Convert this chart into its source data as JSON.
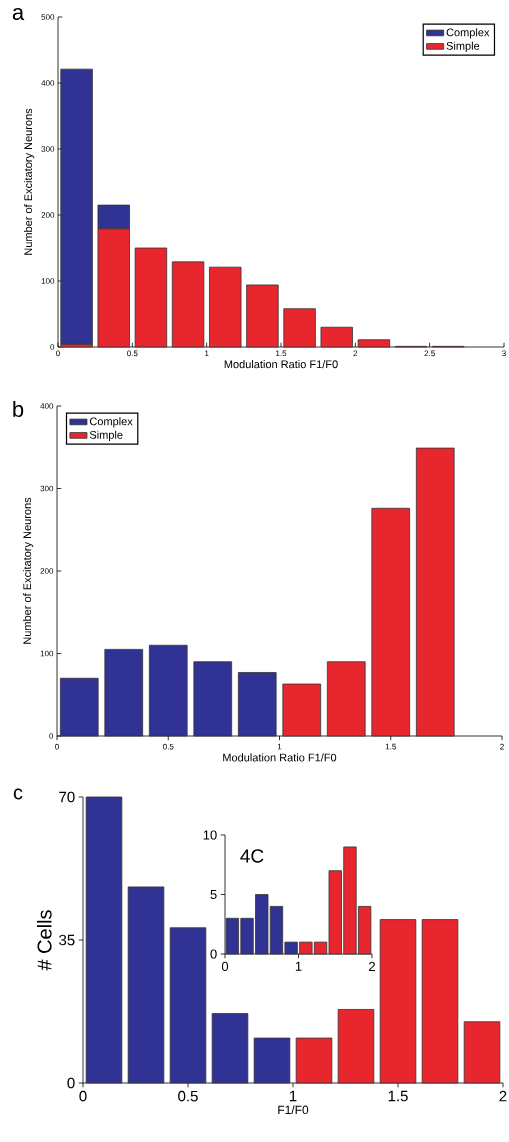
{
  "chart_data": [
    {
      "type": "bar",
      "title": "a",
      "xlabel": "Modulation Ratio F1/F0",
      "ylabel": "Number of Excitatory Neurons",
      "stacked": true,
      "legend": "top right",
      "x": [
        0.125,
        0.375,
        0.625,
        0.875,
        1.125,
        1.375,
        1.625,
        1.875,
        2.125,
        2.375,
        2.625
      ],
      "series": [
        {
          "name": "Simple",
          "color": "#e8262d",
          "values": [
            4,
            179,
            150,
            129,
            121,
            94,
            58,
            30,
            11,
            1,
            1
          ]
        },
        {
          "name": "Complex",
          "color": "#303394",
          "values": [
            417,
            36,
            0,
            0,
            0,
            0,
            0,
            0,
            0,
            0,
            0
          ]
        }
      ],
      "xlim": [
        0,
        3
      ],
      "ylim": [
        0,
        500
      ],
      "xticks": [
        0,
        0.5,
        1,
        1.5,
        2,
        2.5,
        3
      ],
      "yticks": [
        0,
        100,
        200,
        300,
        400,
        500
      ]
    },
    {
      "type": "bar",
      "title": "b",
      "xlabel": "Modulation Ratio F1/F0",
      "ylabel": "Number of Excitatory Neurons",
      "legend": "top left",
      "x": [
        0.1,
        0.3,
        0.5,
        0.7,
        0.9,
        1.1,
        1.3,
        1.5,
        1.7
      ],
      "series": [
        {
          "name": "Complex",
          "color": "#303394",
          "values": [
            70,
            105,
            110,
            90,
            77,
            null,
            null,
            null,
            null
          ]
        },
        {
          "name": "Simple",
          "color": "#e8262d",
          "values": [
            null,
            null,
            null,
            null,
            null,
            63,
            90,
            276,
            349
          ]
        }
      ],
      "xlim": [
        0,
        2
      ],
      "ylim": [
        0,
        400
      ],
      "xticks": [
        0,
        0.5,
        1,
        1.5,
        2
      ],
      "yticks": [
        0,
        100,
        200,
        300,
        400
      ]
    },
    {
      "type": "bar",
      "title": "c",
      "xlabel": "F1/F0",
      "ylabel": "# Cells",
      "x": [
        0.1,
        0.3,
        0.5,
        0.7,
        0.9,
        1.1,
        1.3,
        1.5,
        1.7,
        1.9
      ],
      "series": [
        {
          "color": "#303394",
          "values": [
            70,
            48,
            38,
            17,
            11,
            null,
            null,
            null,
            null,
            null
          ]
        },
        {
          "color": "#e8262d",
          "values": [
            null,
            null,
            null,
            null,
            null,
            11,
            18,
            40,
            40,
            15
          ]
        }
      ],
      "xlim": [
        0,
        2
      ],
      "ylim": [
        0,
        70
      ],
      "xticks": [
        0,
        0.5,
        1,
        1.5,
        2
      ],
      "yticks": [
        0,
        35,
        70
      ]
    },
    {
      "type": "bar",
      "title": "4C",
      "x": [
        0.1,
        0.3,
        0.5,
        0.7,
        0.9,
        1.1,
        1.3,
        1.5,
        1.7,
        1.9
      ],
      "series": [
        {
          "color": "#303394",
          "values": [
            3,
            3,
            5,
            4,
            1,
            null,
            null,
            null,
            null,
            null
          ]
        },
        {
          "color": "#e8262d",
          "values": [
            null,
            null,
            null,
            null,
            null,
            1,
            1,
            7,
            9,
            4
          ]
        }
      ],
      "xlim": [
        0,
        2
      ],
      "ylim": [
        0,
        10
      ],
      "xticks": [
        0,
        1,
        2
      ],
      "yticks": [
        0,
        5,
        10
      ]
    }
  ]
}
